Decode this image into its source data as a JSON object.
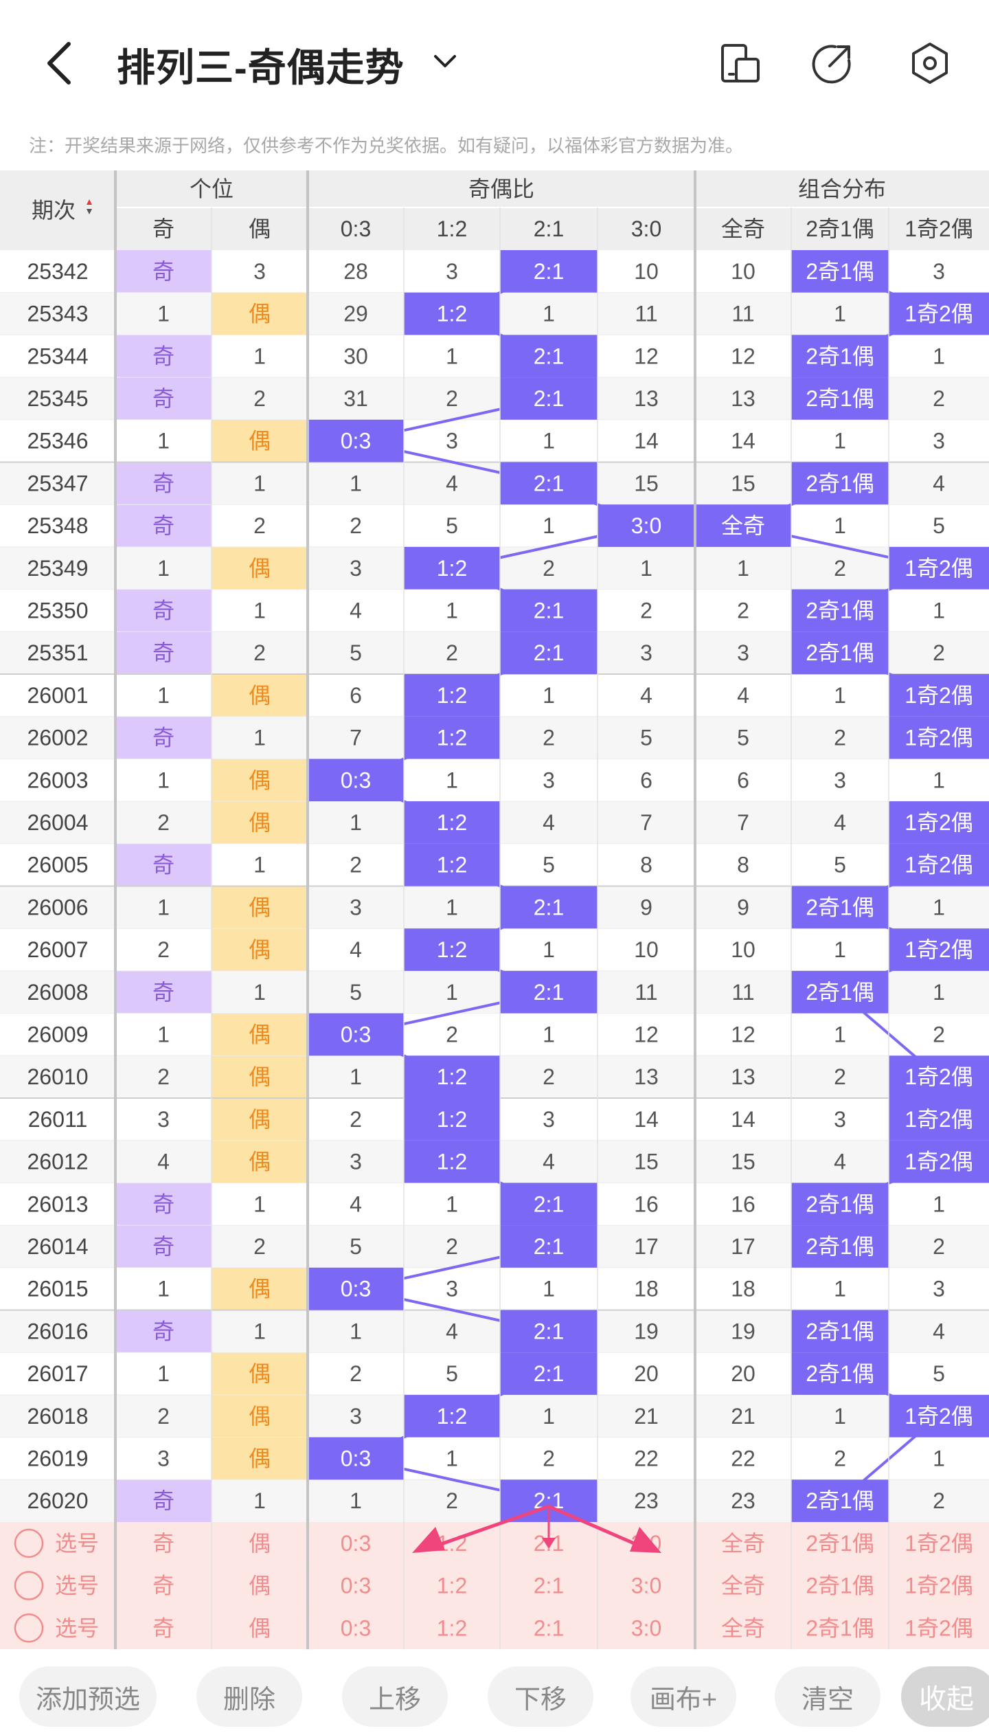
{
  "header": {
    "title": "排列三-奇偶走势",
    "note": "注：开奖结果来源于网络，仅供参考不作为兑奖依据。如有疑问，以福体彩官方数据为准。",
    "icons": [
      "back-arrow-icon",
      "chevron-down-icon",
      "phone-tablet-icon",
      "share-icon",
      "settings-hex-icon"
    ]
  },
  "table": {
    "period_header": "期次",
    "group_headers": [
      "个位",
      "奇偶比",
      "组合分布"
    ],
    "sub_headers": [
      "奇",
      "偶",
      "0:3",
      "1:2",
      "2:1",
      "3:0",
      "全奇",
      "2奇1偶",
      "1奇2偶"
    ],
    "rows": [
      {
        "p": "25342",
        "c": [
          "奇",
          "3",
          "28",
          "3",
          "2:1",
          "10",
          "10",
          "2奇1偶",
          "3"
        ]
      },
      {
        "p": "25343",
        "c": [
          "1",
          "偶",
          "29",
          "1:2",
          "1",
          "11",
          "11",
          "1",
          "1奇2偶"
        ]
      },
      {
        "p": "25344",
        "c": [
          "奇",
          "1",
          "30",
          "1",
          "2:1",
          "12",
          "12",
          "2奇1偶",
          "1"
        ]
      },
      {
        "p": "25345",
        "c": [
          "奇",
          "2",
          "31",
          "2",
          "2:1",
          "13",
          "13",
          "2奇1偶",
          "2"
        ]
      },
      {
        "p": "25346",
        "c": [
          "1",
          "偶",
          "0:3",
          "3",
          "1",
          "14",
          "14",
          "1",
          "3"
        ]
      },
      {
        "p": "25347",
        "c": [
          "奇",
          "1",
          "1",
          "4",
          "2:1",
          "15",
          "15",
          "2奇1偶",
          "4"
        ]
      },
      {
        "p": "25348",
        "c": [
          "奇",
          "2",
          "2",
          "5",
          "1",
          "3:0",
          "全奇",
          "1",
          "5"
        ]
      },
      {
        "p": "25349",
        "c": [
          "1",
          "偶",
          "3",
          "1:2",
          "2",
          "1",
          "1",
          "2",
          "1奇2偶"
        ]
      },
      {
        "p": "25350",
        "c": [
          "奇",
          "1",
          "4",
          "1",
          "2:1",
          "2",
          "2",
          "2奇1偶",
          "1"
        ]
      },
      {
        "p": "25351",
        "c": [
          "奇",
          "2",
          "5",
          "2",
          "2:1",
          "3",
          "3",
          "2奇1偶",
          "2"
        ]
      },
      {
        "p": "26001",
        "c": [
          "1",
          "偶",
          "6",
          "1:2",
          "1",
          "4",
          "4",
          "1",
          "1奇2偶"
        ]
      },
      {
        "p": "26002",
        "c": [
          "奇",
          "1",
          "7",
          "1:2",
          "2",
          "5",
          "5",
          "2",
          "1奇2偶"
        ]
      },
      {
        "p": "26003",
        "c": [
          "1",
          "偶",
          "0:3",
          "1",
          "3",
          "6",
          "6",
          "3",
          "1"
        ]
      },
      {
        "p": "26004",
        "c": [
          "2",
          "偶",
          "1",
          "1:2",
          "4",
          "7",
          "7",
          "4",
          "1奇2偶"
        ]
      },
      {
        "p": "26005",
        "c": [
          "奇",
          "1",
          "2",
          "1:2",
          "5",
          "8",
          "8",
          "5",
          "1奇2偶"
        ]
      },
      {
        "p": "26006",
        "c": [
          "1",
          "偶",
          "3",
          "1",
          "2:1",
          "9",
          "9",
          "2奇1偶",
          "1"
        ]
      },
      {
        "p": "26007",
        "c": [
          "2",
          "偶",
          "4",
          "1:2",
          "1",
          "10",
          "10",
          "1",
          "1奇2偶"
        ]
      },
      {
        "p": "26008",
        "c": [
          "奇",
          "1",
          "5",
          "1",
          "2:1",
          "11",
          "11",
          "2奇1偶",
          "1"
        ]
      },
      {
        "p": "26009",
        "c": [
          "1",
          "偶",
          "0:3",
          "2",
          "1",
          "12",
          "12",
          "1",
          "2"
        ]
      },
      {
        "p": "26010",
        "c": [
          "2",
          "偶",
          "1",
          "1:2",
          "2",
          "13",
          "13",
          "2",
          "1奇2偶"
        ]
      },
      {
        "p": "26011",
        "c": [
          "3",
          "偶",
          "2",
          "1:2",
          "3",
          "14",
          "14",
          "3",
          "1奇2偶"
        ]
      },
      {
        "p": "26012",
        "c": [
          "4",
          "偶",
          "3",
          "1:2",
          "4",
          "15",
          "15",
          "4",
          "1奇2偶"
        ]
      },
      {
        "p": "26013",
        "c": [
          "奇",
          "1",
          "4",
          "1",
          "2:1",
          "16",
          "16",
          "2奇1偶",
          "1"
        ]
      },
      {
        "p": "26014",
        "c": [
          "奇",
          "2",
          "5",
          "2",
          "2:1",
          "17",
          "17",
          "2奇1偶",
          "2"
        ]
      },
      {
        "p": "26015",
        "c": [
          "1",
          "偶",
          "0:3",
          "3",
          "1",
          "18",
          "18",
          "1",
          "3"
        ]
      },
      {
        "p": "26016",
        "c": [
          "奇",
          "1",
          "1",
          "4",
          "2:1",
          "19",
          "19",
          "2奇1偶",
          "4"
        ]
      },
      {
        "p": "26017",
        "c": [
          "1",
          "偶",
          "2",
          "5",
          "2:1",
          "20",
          "20",
          "2奇1偶",
          "5"
        ]
      },
      {
        "p": "26018",
        "c": [
          "2",
          "偶",
          "3",
          "1:2",
          "1",
          "21",
          "21",
          "1",
          "1奇2偶"
        ]
      },
      {
        "p": "26019",
        "c": [
          "3",
          "偶",
          "0:3",
          "1",
          "2",
          "22",
          "22",
          "2",
          "1"
        ]
      },
      {
        "p": "26020",
        "c": [
          "奇",
          "1",
          "1",
          "2",
          "2:1",
          "23",
          "23",
          "2奇1偶",
          "2"
        ]
      }
    ],
    "select_label": "选号",
    "select_values": [
      "奇",
      "偶",
      "0:3",
      "1:2",
      "2:1",
      "3:0",
      "全奇",
      "2奇1偶",
      "1奇2偶"
    ],
    "select_rows": 3
  },
  "toolbar": {
    "buttons": [
      "添加预选",
      "删除",
      "上移",
      "下移",
      "画布+",
      "清空"
    ],
    "collapse": "收起"
  },
  "colors": {
    "hit_blue": "#7b68f5",
    "odd_purple": "#dcc8fb",
    "even_yellow": "#fde3a6",
    "even_text": "#f08a1c",
    "odd_text": "#8a5bd8",
    "select_bg": "#fde7e5",
    "select_text": "#f28c8c",
    "arrow_pink": "#f0457c",
    "trend_line": "#7b68f5"
  }
}
